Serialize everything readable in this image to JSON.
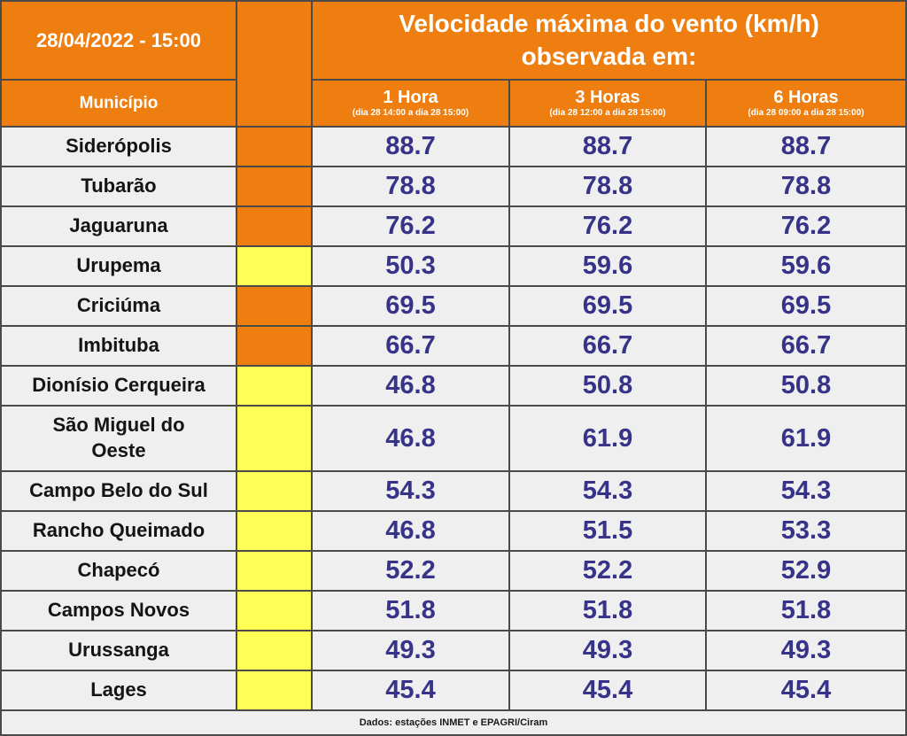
{
  "colors": {
    "orange": "#EE7E10",
    "yellow": "#FFFF55",
    "row_bg": "#EFEFEF",
    "value_text": "#363389",
    "grid_border": "#4A4A4A",
    "header_text": "#FFFFFF"
  },
  "header": {
    "datetime": "28/04/2022 - 15:00",
    "title": "Velocidade máxima do vento (km/h) observada em:",
    "municipality_label": "Município",
    "columns": [
      {
        "label": "1 Hora",
        "sublabel": "(dia 28 14:00 a dia 28 15:00)"
      },
      {
        "label": "3 Horas",
        "sublabel": "(dia 28 12:00 a dia 28 15:00)"
      },
      {
        "label": "6 Horas",
        "sublabel": "(dia 28 09:00 a dia 28 15:00)"
      }
    ]
  },
  "footer": {
    "source": "Dados: estações INMET e EPAGRI/Ciram"
  },
  "chart_data": {
    "type": "table",
    "title": "Velocidade máxima do vento (km/h) observada em:",
    "timestamp": "28/04/2022 - 15:00",
    "columns": [
      "Município",
      "1 Hora (dia 28 14:00 a dia 28 15:00)",
      "3 Horas (dia 28 12:00 a dia 28 15:00)",
      "6 Horas (dia 28 09:00 a dia 28 15:00)"
    ],
    "rows": [
      [
        "Siderópolis",
        88.7,
        88.7,
        88.7
      ],
      [
        "Tubarão",
        78.8,
        78.8,
        78.8
      ],
      [
        "Jaguaruna",
        76.2,
        76.2,
        76.2
      ],
      [
        "Urupema",
        50.3,
        59.6,
        59.6
      ],
      [
        "Criciúma",
        69.5,
        69.5,
        69.5
      ],
      [
        "Imbituba",
        66.7,
        66.7,
        66.7
      ],
      [
        "Dionísio Cerqueira",
        46.8,
        50.8,
        50.8
      ],
      [
        "São Miguel do Oeste",
        46.8,
        61.9,
        61.9
      ],
      [
        "Campo Belo do Sul",
        54.3,
        54.3,
        54.3
      ],
      [
        "Rancho Queimado",
        46.8,
        51.5,
        53.3
      ],
      [
        "Chapecó",
        52.2,
        52.2,
        52.9
      ],
      [
        "Campos Novos",
        51.8,
        51.8,
        51.8
      ],
      [
        "Urussanga",
        49.3,
        49.3,
        49.3
      ],
      [
        "Lages",
        45.4,
        45.4,
        45.4
      ]
    ],
    "row_alert_levels": [
      "orange",
      "orange",
      "orange",
      "yellow",
      "orange",
      "orange",
      "yellow",
      "yellow",
      "yellow",
      "yellow",
      "yellow",
      "yellow",
      "yellow",
      "yellow"
    ],
    "source": "Dados: estações INMET e EPAGRI/Ciram",
    "unit": "km/h"
  }
}
